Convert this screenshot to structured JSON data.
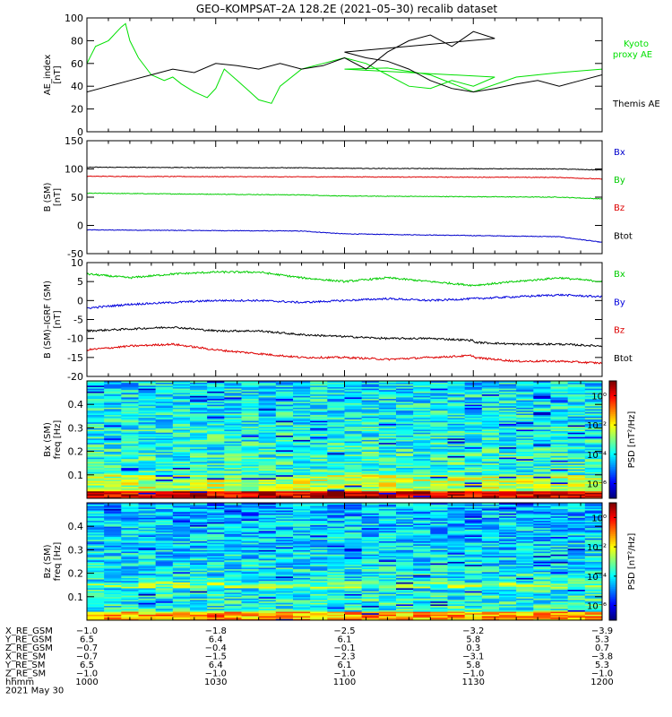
{
  "title": "GEO–KOMPSAT–2A 128.2E (2021–05–30) recalib dataset",
  "chart_data": [
    {
      "type": "line",
      "panel": "ae",
      "ylabel": [
        "AE_index",
        "[nT]"
      ],
      "ylim": [
        0,
        100
      ],
      "yticks": [
        0,
        20,
        40,
        60,
        80,
        100
      ],
      "xlim": [
        1000,
        1200
      ],
      "series": [
        {
          "name": "Kyoto proxy AE",
          "label_lines": [
            "Kyoto",
            "proxy AE"
          ],
          "color": "#00e000",
          "x": [
            1000,
            1002,
            1005,
            1008,
            1009,
            1010,
            1012,
            1015,
            1018,
            1020,
            1022,
            1025,
            1028,
            1030,
            1032,
            1035,
            1038,
            1040,
            1043,
            1045,
            1050,
            1055,
            1060,
            1065,
            1070,
            1075,
            1080,
            1085,
            1090,
            1095,
            1100,
            1110,
            1120,
            1130,
            1140,
            1150,
            1160,
            1170,
            1180,
            1185,
            1190,
            1195,
            1200
          ],
          "y": [
            60,
            75,
            80,
            92,
            95,
            80,
            65,
            50,
            45,
            48,
            42,
            35,
            30,
            38,
            55,
            45,
            35,
            28,
            25,
            40,
            55,
            60,
            65,
            60,
            50,
            40,
            38,
            45,
            40,
            48,
            55,
            56,
            50,
            35,
            48,
            52,
            55,
            56,
            56,
            56,
            55,
            58,
            47
          ]
        },
        {
          "name": "Themis AE",
          "label_lines": [
            "Themis AE"
          ],
          "color": "#000000",
          "x": [
            1000,
            1005,
            1010,
            1015,
            1020,
            1025,
            1030,
            1035,
            1040,
            1045,
            1050,
            1055,
            1060,
            1065,
            1070,
            1075,
            1080,
            1085,
            1090,
            1095,
            1100,
            1105,
            1110,
            1115,
            1120,
            1125,
            1130,
            1135,
            1140,
            1145,
            1150,
            1155,
            1160,
            1165,
            1170,
            1175,
            1180,
            1185,
            1190,
            1195,
            1200
          ],
          "y": [
            35,
            40,
            45,
            50,
            55,
            52,
            60,
            58,
            55,
            60,
            55,
            58,
            65,
            55,
            70,
            80,
            85,
            75,
            88,
            82,
            70,
            65,
            62,
            55,
            45,
            38,
            35,
            38,
            42,
            45,
            40,
            45,
            50,
            55,
            60,
            63,
            68,
            72,
            75,
            70,
            65
          ]
        }
      ]
    },
    {
      "type": "line",
      "panel": "b_sm",
      "ylabel": [
        "B (SM)",
        "[nT]"
      ],
      "ylim": [
        -50,
        150
      ],
      "yticks": [
        -50,
        0,
        50,
        100,
        150
      ],
      "xlim": [
        1000,
        1200
      ],
      "series": [
        {
          "name": "Bx",
          "color": "#0000cc",
          "x": [
            1000,
            1050,
            1100,
            1150,
            1200
          ],
          "y": [
            -8,
            -10,
            -15,
            -20,
            -30
          ]
        },
        {
          "name": "By",
          "color": "#00cc00",
          "x": [
            1000,
            1050,
            1100,
            1150,
            1200
          ],
          "y": [
            57,
            54,
            52,
            50,
            47
          ]
        },
        {
          "name": "Bz",
          "color": "#dd0000",
          "x": [
            1000,
            1050,
            1100,
            1150,
            1200
          ],
          "y": [
            87,
            86,
            86,
            85,
            82
          ]
        },
        {
          "name": "Btot",
          "color": "#000000",
          "x": [
            1000,
            1050,
            1100,
            1150,
            1200
          ],
          "y": [
            103,
            102,
            101,
            100,
            98
          ]
        }
      ]
    },
    {
      "type": "line",
      "panel": "b_sm_igrf",
      "ylabel": [
        "B (SM)–IGRF (SM)",
        "[nT]"
      ],
      "ylim": [
        -20,
        10
      ],
      "yticks": [
        -20,
        -15,
        -10,
        -5,
        0,
        5,
        10
      ],
      "xlim": [
        1000,
        1200
      ],
      "series": [
        {
          "name": "Bx",
          "color": "#00cc00",
          "x": [
            1000,
            1010,
            1020,
            1030,
            1040,
            1050,
            1060,
            1070,
            1080,
            1090,
            1100,
            1110,
            1120,
            1130,
            1140,
            1150,
            1160,
            1170,
            1180,
            1190,
            1200
          ],
          "y": [
            7,
            6,
            7,
            7.5,
            7.5,
            6,
            5,
            6,
            5,
            4,
            4,
            5,
            5,
            4,
            5,
            6,
            5,
            4,
            5,
            6,
            5
          ]
        },
        {
          "name": "By",
          "color": "#0000dd",
          "x": [
            1000,
            1010,
            1020,
            1030,
            1040,
            1050,
            1060,
            1070,
            1080,
            1090,
            1100,
            1110,
            1120,
            1130,
            1140,
            1150,
            1160,
            1170,
            1180,
            1190,
            1200
          ],
          "y": [
            -2,
            -1,
            -0.5,
            0,
            0,
            -0.5,
            0,
            0.5,
            0,
            0.5,
            1,
            0.5,
            1,
            0.5,
            1,
            1.5,
            1,
            2,
            2.5,
            1.5,
            0
          ]
        },
        {
          "name": "Bz",
          "color": "#dd0000",
          "x": [
            1000,
            1010,
            1020,
            1030,
            1040,
            1050,
            1060,
            1070,
            1080,
            1090,
            1100,
            1110,
            1120,
            1130,
            1140,
            1150,
            1160,
            1170,
            1180,
            1190,
            1200
          ],
          "y": [
            -13,
            -12,
            -11.5,
            -13,
            -14,
            -15,
            -15,
            -15.5,
            -15,
            -14.5,
            -15,
            -16,
            -15.5,
            -15,
            -16,
            -16,
            -16.5,
            -17,
            -17,
            -17,
            -19
          ]
        },
        {
          "name": "Btot",
          "color": "#000000",
          "x": [
            1000,
            1010,
            1020,
            1030,
            1040,
            1050,
            1060,
            1070,
            1080,
            1090,
            1100,
            1110,
            1120,
            1130,
            1140,
            1150,
            1160,
            1170,
            1180,
            1190,
            1200
          ],
          "y": [
            -8,
            -7.5,
            -7,
            -8,
            -8,
            -9,
            -9.5,
            -10,
            -10,
            -10.5,
            -11,
            -11.5,
            -11,
            -11,
            -11.5,
            -11.5,
            -12,
            -12,
            -12.5,
            -13,
            -14
          ]
        }
      ]
    },
    {
      "type": "heatmap",
      "panel": "bx_spectrogram",
      "ylabel": [
        "Bx (SM)",
        "freq [Hz]"
      ],
      "ylim": [
        0,
        0.5
      ],
      "yticks": [
        0.1,
        0.2,
        0.3,
        0.4
      ],
      "xlim": [
        1000,
        1200
      ],
      "colorbar": {
        "label": "PSD [nT²/Hz]",
        "ticks": [
          "10⁰",
          "10⁻²",
          "10⁻⁴",
          "10⁻⁶"
        ],
        "range_log10": [
          -7,
          1
        ]
      }
    },
    {
      "type": "heatmap",
      "panel": "bz_spectrogram",
      "ylabel": [
        "Bz (SM)",
        "freq [Hz]"
      ],
      "ylim": [
        0,
        0.5
      ],
      "yticks": [
        0.1,
        0.2,
        0.3,
        0.4
      ],
      "xlim": [
        1000,
        1200
      ],
      "colorbar": {
        "label": "PSD [nT²/Hz]",
        "ticks": [
          "10⁰",
          "10⁻²",
          "10⁻⁴",
          "10⁻⁶"
        ],
        "range_log10": [
          -7,
          1
        ]
      }
    }
  ],
  "ephemeris": {
    "labels": [
      "X_RE_GSM",
      "Y_RE_GSM",
      "Z_RE_GSM",
      "X_RE_SM",
      "Y_RE_SM",
      "Z_RE_SM",
      "hhmm",
      "2021 May 30"
    ],
    "columns": [
      {
        "time": 1000,
        "values": [
          "−1.0",
          "6.5",
          "−0.7",
          "−0.7",
          "6.5",
          "−1.0",
          "1000"
        ]
      },
      {
        "time": 1030,
        "values": [
          "−1.8",
          "6.4",
          "−0.4",
          "−1.5",
          "6.4",
          "−1.0",
          "1030"
        ]
      },
      {
        "time": 1100,
        "values": [
          "−2.5",
          "6.1",
          "−0.1",
          "−2.3",
          "6.1",
          "−1.0",
          "1100"
        ]
      },
      {
        "time": 1130,
        "values": [
          "−3.2",
          "5.8",
          "0.3",
          "−3.1",
          "5.8",
          "−1.0",
          "1130"
        ]
      },
      {
        "time": 1200,
        "values": [
          "−3.9",
          "5.3",
          "0.7",
          "−3.8",
          "5.3",
          "−1.0",
          "1200"
        ]
      }
    ]
  }
}
